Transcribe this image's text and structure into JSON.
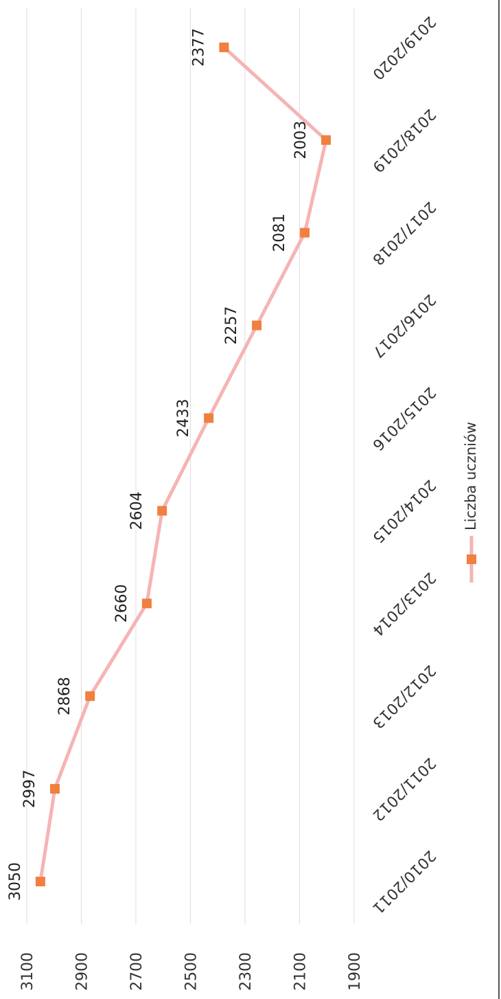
{
  "chart_data": {
    "type": "line",
    "orientation": "rotated-90-clockwise",
    "categories": [
      "2010/2011",
      "2011/2012",
      "2012/2013",
      "2013/2014",
      "2014/2015",
      "2015/2016",
      "2016/2017",
      "2017/2018",
      "2018/2019",
      "2019/2020"
    ],
    "series": [
      {
        "name": "Liczba uczniów",
        "values": [
          3050,
          2997,
          2868,
          2660,
          2604,
          2433,
          2257,
          2081,
          2003,
          2377
        ],
        "color": "#f6b4b4",
        "marker_color": "#f08040"
      }
    ],
    "ylim": [
      1900,
      3100
    ],
    "yticks": [
      "1900",
      "2100",
      "2300",
      "2500",
      "2700",
      "2900",
      "3100"
    ],
    "grid": true,
    "legend_position": "bottom",
    "data_labels": true
  }
}
